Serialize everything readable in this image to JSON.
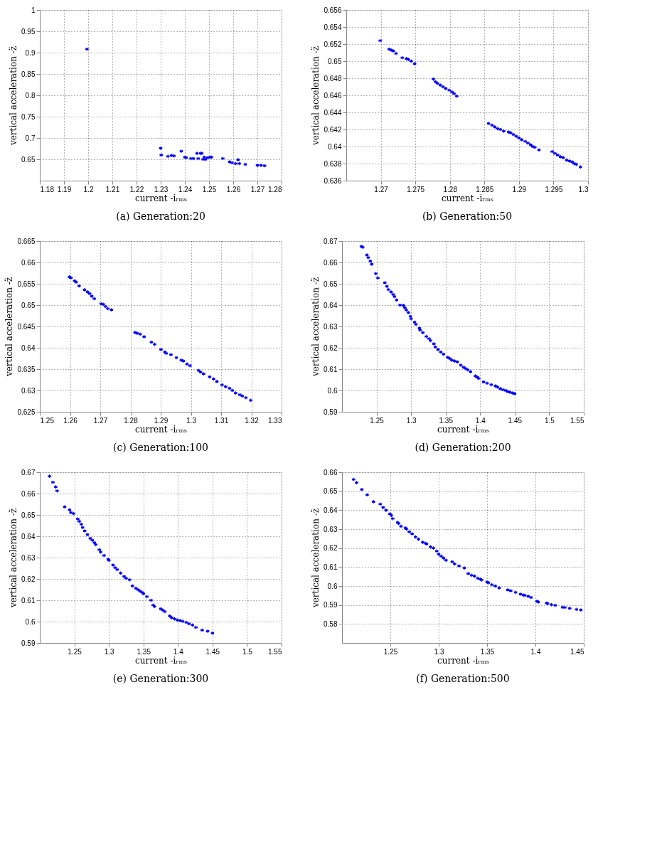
{
  "chart_data": [
    {
      "type": "scatter",
      "title": "(a) Generation:20",
      "xlabel": "current -iᵣₘₛ",
      "ylabel": "vertical acceleration -z̈",
      "marker": "cross",
      "grid": true,
      "xlim": [
        1.18,
        1.28
      ],
      "xticks": [
        1.18,
        1.19,
        1.2,
        1.21,
        1.22,
        1.23,
        1.24,
        1.25,
        1.26,
        1.27,
        1.28
      ],
      "ylim": [
        0.6,
        1
      ],
      "yticks": [
        0.65,
        0.7,
        0.75,
        0.8,
        0.85,
        0.9,
        0.95,
        1
      ],
      "series": [
        {
          "color": "#0000ff",
          "x": [
            1.1995,
            1.23,
            1.2302,
            1.233,
            1.2345,
            1.2355,
            1.2385,
            1.24,
            1.2405,
            1.2425,
            1.2435,
            1.245,
            1.2455,
            1.2465,
            1.247,
            1.2475,
            1.248,
            1.2485,
            1.2495,
            1.2505,
            1.251,
            1.2557,
            1.2585,
            1.2595,
            1.261,
            1.262,
            1.2625,
            1.265,
            1.27,
            1.2715,
            1.273
          ],
          "values": [
            0.908,
            0.676,
            0.66,
            0.657,
            0.659,
            0.658,
            0.669,
            0.655,
            0.654,
            0.652,
            0.652,
            0.664,
            0.652,
            0.664,
            0.664,
            0.65,
            0.655,
            0.65,
            0.654,
            0.655,
            0.655,
            0.652,
            0.644,
            0.642,
            0.64,
            0.649,
            0.64,
            0.638,
            0.636,
            0.636,
            0.635
          ]
        }
      ]
    },
    {
      "type": "scatter",
      "title": "(b) Generation:50",
      "xlabel": "current -iᵣₘₛ",
      "ylabel": "vertical acceleration -z̈",
      "marker": "cross",
      "grid": true,
      "xlim": [
        1.265,
        1.3
      ],
      "xticks": [
        1.27,
        1.275,
        1.28,
        1.285,
        1.29,
        1.295,
        1.3
      ],
      "ylim": [
        0.636,
        0.656
      ],
      "yticks": [
        0.636,
        0.638,
        0.64,
        0.642,
        0.644,
        0.646,
        0.648,
        0.65,
        0.652,
        0.654,
        0.656
      ],
      "series": [
        {
          "color": "#0000ff",
          "x": [
            1.2699,
            1.2712,
            1.2715,
            1.2718,
            1.2722,
            1.2731,
            1.2737,
            1.274,
            1.2744,
            1.2749,
            1.2776,
            1.2779,
            1.2782,
            1.2786,
            1.279,
            1.2794,
            1.2799,
            1.2803,
            1.2806,
            1.281,
            1.2856,
            1.2861,
            1.2865,
            1.2869,
            1.2873,
            1.2878,
            1.2885,
            1.2888,
            1.2892,
            1.2896,
            1.29,
            1.2904,
            1.2909,
            1.2913,
            1.2917,
            1.292,
            1.2923,
            1.2929,
            1.2948,
            1.2952,
            1.2956,
            1.296,
            1.2964,
            1.2969,
            1.2973,
            1.2977,
            1.298,
            1.2983,
            1.2989
          ],
          "values": [
            0.6524,
            0.6514,
            0.6513,
            0.6512,
            0.6509,
            0.6504,
            0.6503,
            0.6502,
            0.65,
            0.6497,
            0.6479,
            0.6476,
            0.6474,
            0.6472,
            0.647,
            0.6468,
            0.6466,
            0.6464,
            0.6462,
            0.6459,
            0.6427,
            0.6425,
            0.6423,
            0.6421,
            0.642,
            0.6418,
            0.6417,
            0.6416,
            0.6414,
            0.6412,
            0.641,
            0.6408,
            0.6406,
            0.6404,
            0.6402,
            0.64,
            0.6399,
            0.6396,
            0.6394,
            0.6392,
            0.639,
            0.6388,
            0.6387,
            0.6384,
            0.6383,
            0.6382,
            0.638,
            0.6379,
            0.6376
          ]
        }
      ]
    },
    {
      "type": "scatter",
      "title": "(c) Generation:100",
      "xlabel": "current -iᵣₘₛ",
      "ylabel": "vertical acceleration -z̈",
      "marker": "cross",
      "grid": true,
      "xlim": [
        1.25,
        1.33
      ],
      "xticks": [
        1.25,
        1.26,
        1.27,
        1.28,
        1.29,
        1.3,
        1.31,
        1.32,
        1.33
      ],
      "ylim": [
        0.625,
        0.665
      ],
      "yticks": [
        0.625,
        0.63,
        0.635,
        0.64,
        0.645,
        0.65,
        0.655,
        0.66,
        0.665
      ],
      "series": [
        {
          "color": "#0000ff",
          "x": [
            1.2598,
            1.2603,
            1.2615,
            1.262,
            1.263,
            1.2648,
            1.2658,
            1.2665,
            1.2672,
            1.268,
            1.2703,
            1.271,
            1.2717,
            1.2725,
            1.2737,
            1.2815,
            1.2822,
            1.2832,
            1.2845,
            1.2869,
            1.288,
            1.2901,
            1.2914,
            1.2918,
            1.2934,
            1.2952,
            1.2968,
            1.2975,
            1.2987,
            1.2997,
            1.3025,
            1.3032,
            1.3042,
            1.3062,
            1.3075,
            1.3086,
            1.3103,
            1.3115,
            1.3128,
            1.3137,
            1.3148,
            1.3162,
            1.317,
            1.3182,
            1.3198
          ],
          "values": [
            0.6566,
            0.6564,
            0.6557,
            0.6554,
            0.6545,
            0.6536,
            0.6531,
            0.6527,
            0.6521,
            0.6515,
            0.6503,
            0.6502,
            0.6497,
            0.6492,
            0.6489,
            0.6436,
            0.6434,
            0.6432,
            0.6426,
            0.6413,
            0.6408,
            0.6396,
            0.639,
            0.6387,
            0.6384,
            0.6377,
            0.6371,
            0.6369,
            0.6362,
            0.6358,
            0.6347,
            0.6343,
            0.6339,
            0.6332,
            0.6327,
            0.6321,
            0.6313,
            0.6309,
            0.6305,
            0.63,
            0.6294,
            0.629,
            0.6287,
            0.6283,
            0.6277
          ]
        }
      ]
    },
    {
      "type": "scatter",
      "title": "(d) Generation:200",
      "xlabel": "current -iᵣₘₛ",
      "ylabel": "vertical acceleration -z̈",
      "marker": "cross",
      "grid": true,
      "xlim": [
        1.2,
        1.55
      ],
      "xticks": [
        1.25,
        1.3,
        1.35,
        1.4,
        1.45,
        1.5,
        1.55
      ],
      "ylim": [
        0.59,
        0.67
      ],
      "yticks": [
        0.59,
        0.6,
        0.61,
        0.62,
        0.63,
        0.64,
        0.65,
        0.66,
        0.67
      ],
      "series": [
        {
          "color": "#0000ff",
          "x": [
            1.228,
            1.23,
            1.236,
            1.238,
            1.241,
            1.243,
            1.249,
            1.252,
            1.262,
            1.265,
            1.267,
            1.271,
            1.274,
            1.276,
            1.279,
            1.284,
            1.289,
            1.291,
            1.293,
            1.296,
            1.299,
            1.3,
            1.305,
            1.307,
            1.312,
            1.313,
            1.317,
            1.322,
            1.326,
            1.328,
            1.333,
            1.335,
            1.339,
            1.343,
            1.347,
            1.353,
            1.356,
            1.359,
            1.363,
            1.367,
            1.372,
            1.376,
            1.379,
            1.382,
            1.386,
            1.393,
            1.396,
            1.398,
            1.405,
            1.41,
            1.416,
            1.422,
            1.425,
            1.429,
            1.433,
            1.437,
            1.44,
            1.443,
            1.447,
            1.45
          ],
          "values": [
            0.6675,
            0.6671,
            0.6635,
            0.6623,
            0.6606,
            0.6592,
            0.6548,
            0.6527,
            0.6505,
            0.6488,
            0.6473,
            0.6462,
            0.645,
            0.644,
            0.6424,
            0.64,
            0.6399,
            0.6388,
            0.6377,
            0.6365,
            0.6347,
            0.6336,
            0.632,
            0.631,
            0.6292,
            0.6283,
            0.6271,
            0.6253,
            0.6243,
            0.6234,
            0.6219,
            0.6204,
            0.6192,
            0.618,
            0.617,
            0.6155,
            0.615,
            0.6142,
            0.6138,
            0.6134,
            0.6119,
            0.6109,
            0.6103,
            0.6097,
            0.6088,
            0.6068,
            0.6062,
            0.6056,
            0.604,
            0.6034,
            0.6027,
            0.6021,
            0.6016,
            0.6009,
            0.6004,
            0.6,
            0.5995,
            0.5992,
            0.5988,
            0.5985
          ]
        }
      ]
    },
    {
      "type": "scatter",
      "title": "(e) Generation:300",
      "xlabel": "current -iᵣₘₛ",
      "ylabel": "vertical acceleration -z̈",
      "marker": "cross",
      "grid": true,
      "xlim": [
        1.2,
        1.55
      ],
      "xticks": [
        1.25,
        1.3,
        1.35,
        1.4,
        1.45,
        1.5,
        1.55
      ],
      "ylim": [
        0.59,
        0.67
      ],
      "yticks": [
        0.59,
        0.6,
        0.61,
        0.62,
        0.63,
        0.64,
        0.65,
        0.66,
        0.67
      ],
      "series": [
        {
          "color": "#0000ff",
          "x": [
            1.214,
            1.219,
            1.223,
            1.225,
            1.236,
            1.243,
            1.245,
            1.249,
            1.255,
            1.257,
            1.26,
            1.262,
            1.265,
            1.269,
            1.273,
            1.276,
            1.279,
            1.281,
            1.286,
            1.288,
            1.293,
            1.299,
            1.3,
            1.306,
            1.309,
            1.312,
            1.317,
            1.322,
            1.325,
            1.33,
            1.334,
            1.339,
            1.342,
            1.345,
            1.348,
            1.35,
            1.355,
            1.361,
            1.364,
            1.366,
            1.375,
            1.378,
            1.381,
            1.388,
            1.391,
            1.395,
            1.399,
            1.403,
            1.407,
            1.412,
            1.416,
            1.421,
            1.426,
            1.435,
            1.443,
            1.45
          ],
          "values": [
            0.6681,
            0.6653,
            0.6631,
            0.6613,
            0.6538,
            0.6524,
            0.6511,
            0.6506,
            0.6481,
            0.647,
            0.6456,
            0.6441,
            0.6425,
            0.6408,
            0.639,
            0.6381,
            0.637,
            0.6361,
            0.6337,
            0.6326,
            0.631,
            0.6292,
            0.6287,
            0.6265,
            0.6253,
            0.6244,
            0.6227,
            0.6212,
            0.6203,
            0.6196,
            0.6167,
            0.6156,
            0.615,
            0.6143,
            0.6137,
            0.6131,
            0.6117,
            0.61,
            0.6077,
            0.6071,
            0.606,
            0.6054,
            0.6047,
            0.6026,
            0.6019,
            0.6013,
            0.6007,
            0.6005,
            0.6001,
            0.5996,
            0.599,
            0.5984,
            0.5973,
            0.596,
            0.5955,
            0.5946
          ]
        }
      ]
    },
    {
      "type": "scatter",
      "title": "(f) Generation:500",
      "xlabel": "current -iᵣₘₛ",
      "ylabel": "vertical acceleration -z̈",
      "marker": "cross",
      "grid": true,
      "xlim": [
        1.2,
        1.45
      ],
      "xticks": [
        1.25,
        1.3,
        1.35,
        1.4,
        1.45
      ],
      "ylim": [
        0.57,
        0.66
      ],
      "yticks": [
        0.58,
        0.59,
        0.6,
        0.61,
        0.62,
        0.63,
        0.64,
        0.65,
        0.66
      ],
      "series": [
        {
          "color": "#0000ff",
          "x": [
            1.212,
            1.215,
            1.2205,
            1.226,
            1.2325,
            1.2395,
            1.2425,
            1.2455,
            1.2495,
            1.251,
            1.2525,
            1.2575,
            1.2585,
            1.261,
            1.2655,
            1.2665,
            1.2695,
            1.2725,
            1.276,
            1.279,
            1.2835,
            1.2865,
            1.2875,
            1.2915,
            1.2945,
            1.298,
            1.3,
            1.3025,
            1.305,
            1.3075,
            1.3139,
            1.3165,
            1.321,
            1.3265,
            1.3305,
            1.334,
            1.337,
            1.3405,
            1.343,
            1.3445,
            1.35,
            1.3515,
            1.355,
            1.3585,
            1.3625,
            1.3715,
            1.3745,
            1.3795,
            1.3845,
            1.3875,
            1.389,
            1.3925,
            1.3955,
            1.4015,
            1.403,
            1.4115,
            1.4125,
            1.4165,
            1.4205,
            1.428,
            1.4305,
            1.4355,
            1.4425,
            1.447
          ],
          "values": [
            0.6562,
            0.6545,
            0.6509,
            0.6481,
            0.6445,
            0.6432,
            0.6415,
            0.64,
            0.638,
            0.6373,
            0.6356,
            0.6335,
            0.633,
            0.6315,
            0.6307,
            0.6301,
            0.6286,
            0.6275,
            0.6259,
            0.6247,
            0.6231,
            0.6225,
            0.6222,
            0.6207,
            0.62,
            0.6184,
            0.6168,
            0.6157,
            0.6148,
            0.6136,
            0.6128,
            0.6117,
            0.6106,
            0.6095,
            0.6066,
            0.6057,
            0.6052,
            0.6041,
            0.6036,
            0.6032,
            0.6021,
            0.6017,
            0.6007,
            0.6,
            0.599,
            0.598,
            0.5975,
            0.5967,
            0.5957,
            0.5953,
            0.5951,
            0.5946,
            0.594,
            0.592,
            0.5916,
            0.591,
            0.5908,
            0.5902,
            0.5898,
            0.5888,
            0.5887,
            0.5882,
            0.5877,
            0.5874
          ]
        }
      ]
    }
  ]
}
